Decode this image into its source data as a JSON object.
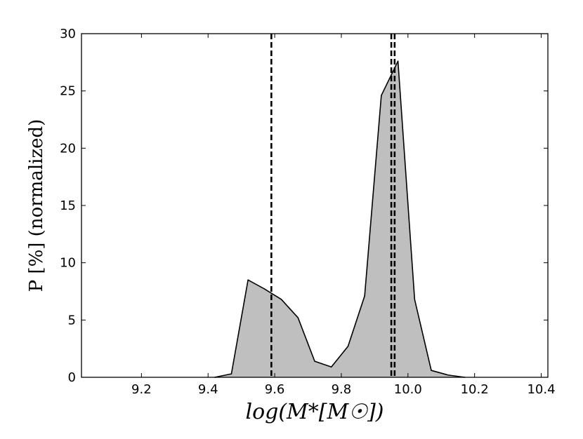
{
  "chart_data": {
    "type": "area",
    "title": "",
    "xlabel": "log(M*[M☉])",
    "ylabel": "P [%] (normalized)",
    "xlim": [
      9.02,
      10.42
    ],
    "ylim": [
      0,
      30
    ],
    "xticks": [
      9.2,
      9.4,
      9.6,
      9.8,
      10.0,
      10.2,
      10.4
    ],
    "xtick_labels": [
      "9.2",
      "9.4",
      "9.6",
      "9.8",
      "10.0",
      "10.2",
      "10.4"
    ],
    "yticks": [
      0,
      5,
      10,
      15,
      20,
      25,
      30
    ],
    "ytick_labels": [
      "0",
      "5",
      "10",
      "15",
      "20",
      "25",
      "30"
    ],
    "fill_color": "#bfbfbf",
    "line_color": "#000000",
    "grid": false,
    "series": [
      {
        "x": [
          9.42,
          9.47,
          9.52,
          9.57,
          9.62,
          9.67,
          9.72,
          9.77,
          9.82,
          9.87,
          9.92,
          9.97,
          10.02,
          10.07,
          10.12,
          10.17
        ],
        "y": [
          0.0,
          0.3,
          8.5,
          7.7,
          6.8,
          5.2,
          1.4,
          0.9,
          2.7,
          7.1,
          24.6,
          27.6,
          6.8,
          0.6,
          0.2,
          0.0
        ]
      }
    ],
    "vlines": [
      {
        "x": 9.59,
        "style": "dashed"
      },
      {
        "x": 9.95,
        "style": "dashed"
      },
      {
        "x": 9.96,
        "style": "dashed"
      }
    ]
  }
}
